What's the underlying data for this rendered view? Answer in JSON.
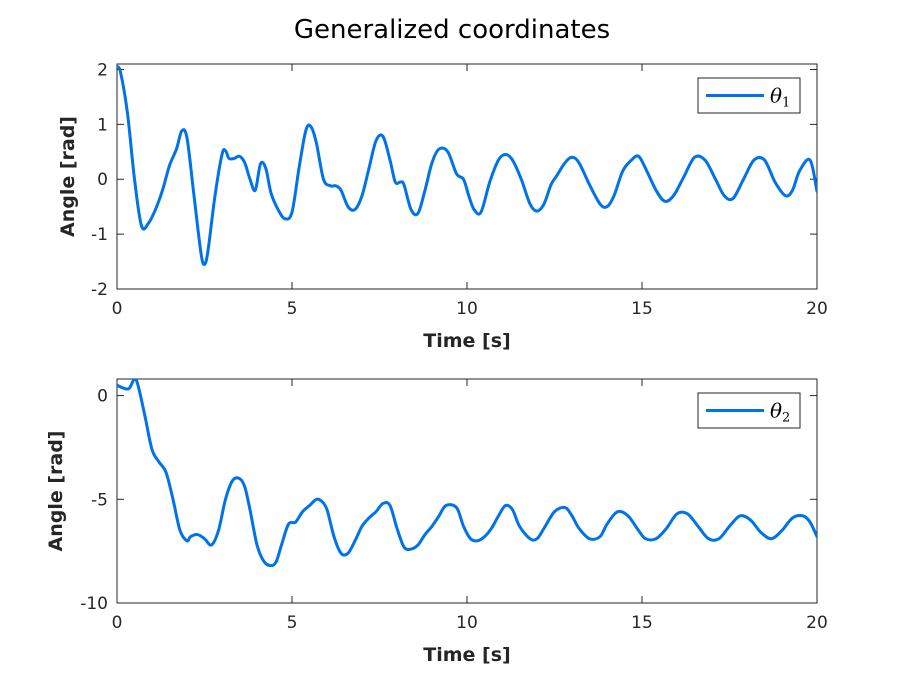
{
  "figure": {
    "title": "Generalized coordinates",
    "line_color": "#0072ea"
  },
  "chart_data": [
    {
      "type": "line",
      "xlabel": "Time [s]",
      "ylabel": "Angle [rad]",
      "xlim": [
        0,
        20
      ],
      "ylim": [
        -2,
        2.1
      ],
      "xticks": [
        "0",
        "5",
        "10",
        "15",
        "20"
      ],
      "yticks": [
        "2",
        "1",
        "0",
        "-1",
        "-2"
      ],
      "xtick_values": [
        0,
        5,
        10,
        15,
        20
      ],
      "ytick_values": [
        2,
        1,
        0,
        -1,
        -2
      ],
      "grid": false,
      "legend_position": "top-right",
      "series": [
        {
          "name": "θ",
          "subscript": "1",
          "x": [
            0,
            0.1,
            0.3,
            0.5,
            0.7,
            0.9,
            1.1,
            1.3,
            1.5,
            1.7,
            1.85,
            2.0,
            2.2,
            2.4,
            2.5,
            2.6,
            2.8,
            3.0,
            3.1,
            3.2,
            3.35,
            3.5,
            3.65,
            3.8,
            3.95,
            4.1,
            4.25,
            4.4,
            4.6,
            4.8,
            5.0,
            5.2,
            5.4,
            5.55,
            5.7,
            5.9,
            6.1,
            6.25,
            6.4,
            6.6,
            6.8,
            7.0,
            7.2,
            7.4,
            7.6,
            7.8,
            7.95,
            8.1,
            8.2,
            8.4,
            8.6,
            8.8,
            9.0,
            9.2,
            9.45,
            9.7,
            9.9,
            10.05,
            10.2,
            10.4,
            10.65,
            10.9,
            11.1,
            11.3,
            11.55,
            11.8,
            12.0,
            12.2,
            12.4,
            12.55,
            12.8,
            13.0,
            13.2,
            13.5,
            13.8,
            14.0,
            14.2,
            14.45,
            14.7,
            14.9,
            15.1,
            15.4,
            15.65,
            15.9,
            16.2,
            16.5,
            16.8,
            17.1,
            17.35,
            17.6,
            17.9,
            18.2,
            18.5,
            18.8,
            19.1,
            19.3,
            19.5,
            19.8,
            20.0
          ],
          "values": [
            2.05,
            1.95,
            1.2,
            0.0,
            -0.85,
            -0.8,
            -0.55,
            -0.2,
            0.25,
            0.55,
            0.88,
            0.75,
            -0.3,
            -1.35,
            -1.55,
            -1.3,
            -0.3,
            0.45,
            0.52,
            0.38,
            0.38,
            0.42,
            0.3,
            0.0,
            -0.2,
            0.28,
            0.2,
            -0.25,
            -0.55,
            -0.72,
            -0.6,
            0.2,
            0.9,
            0.95,
            0.65,
            0.0,
            -0.12,
            -0.12,
            -0.2,
            -0.5,
            -0.55,
            -0.3,
            0.2,
            0.7,
            0.78,
            0.35,
            -0.05,
            -0.05,
            -0.1,
            -0.55,
            -0.62,
            -0.2,
            0.3,
            0.55,
            0.5,
            0.1,
            0.0,
            -0.3,
            -0.55,
            -0.6,
            -0.05,
            0.35,
            0.45,
            0.35,
            0.0,
            -0.45,
            -0.58,
            -0.45,
            -0.1,
            0.05,
            0.3,
            0.4,
            0.3,
            -0.1,
            -0.45,
            -0.5,
            -0.3,
            0.15,
            0.35,
            0.42,
            0.2,
            -0.2,
            -0.4,
            -0.3,
            0.05,
            0.4,
            0.35,
            0.0,
            -0.3,
            -0.35,
            0.0,
            0.35,
            0.35,
            -0.05,
            -0.3,
            -0.2,
            0.15,
            0.35,
            -0.22
          ]
        }
      ]
    },
    {
      "type": "line",
      "xlabel": "Time [s]",
      "ylabel": "Angle [rad]",
      "xlim": [
        0,
        20
      ],
      "ylim": [
        -10,
        0.8
      ],
      "xticks": [
        "0",
        "5",
        "10",
        "15",
        "20"
      ],
      "yticks": [
        "0",
        "-5",
        "-10"
      ],
      "xtick_values": [
        0,
        5,
        10,
        15,
        20
      ],
      "ytick_values": [
        0,
        -5,
        -10
      ],
      "grid": false,
      "legend_position": "top-right",
      "series": [
        {
          "name": "θ",
          "subscript": "2",
          "x": [
            0,
            0.2,
            0.35,
            0.5,
            0.6,
            0.8,
            1.0,
            1.2,
            1.4,
            1.6,
            1.8,
            2.0,
            2.1,
            2.3,
            2.5,
            2.7,
            2.9,
            3.1,
            3.3,
            3.5,
            3.65,
            3.8,
            4.0,
            4.2,
            4.4,
            4.55,
            4.7,
            4.9,
            5.1,
            5.3,
            5.5,
            5.7,
            5.85,
            6.0,
            6.2,
            6.4,
            6.6,
            6.8,
            7.0,
            7.2,
            7.4,
            7.6,
            7.8,
            8.0,
            8.2,
            8.4,
            8.6,
            8.8,
            9.0,
            9.2,
            9.4,
            9.7,
            9.9,
            10.1,
            10.3,
            10.5,
            10.7,
            10.9,
            11.1,
            11.3,
            11.5,
            11.8,
            12.0,
            12.2,
            12.5,
            12.8,
            13.0,
            13.2,
            13.5,
            13.8,
            14.0,
            14.3,
            14.6,
            14.9,
            15.1,
            15.4,
            15.7,
            16.0,
            16.3,
            16.6,
            16.9,
            17.2,
            17.5,
            17.8,
            18.1,
            18.4,
            18.7,
            19.0,
            19.3,
            19.6,
            19.8,
            20.0
          ],
          "values": [
            0.5,
            0.35,
            0.35,
            0.8,
            0.5,
            -1.0,
            -2.6,
            -3.2,
            -3.7,
            -5.0,
            -6.5,
            -7.0,
            -6.8,
            -6.7,
            -6.9,
            -7.2,
            -6.5,
            -5.0,
            -4.1,
            -4.0,
            -4.4,
            -5.5,
            -7.2,
            -8.0,
            -8.2,
            -8.0,
            -7.2,
            -6.2,
            -6.1,
            -5.6,
            -5.3,
            -5.0,
            -5.1,
            -5.5,
            -6.8,
            -7.6,
            -7.6,
            -7.0,
            -6.3,
            -5.9,
            -5.6,
            -5.2,
            -5.3,
            -6.4,
            -7.3,
            -7.4,
            -7.2,
            -6.7,
            -6.3,
            -5.8,
            -5.3,
            -5.4,
            -6.3,
            -6.9,
            -7.0,
            -6.8,
            -6.4,
            -5.8,
            -5.3,
            -5.5,
            -6.3,
            -6.9,
            -6.9,
            -6.4,
            -5.6,
            -5.4,
            -5.8,
            -6.4,
            -6.9,
            -6.8,
            -6.2,
            -5.6,
            -5.8,
            -6.5,
            -6.9,
            -6.9,
            -6.4,
            -5.7,
            -5.7,
            -6.3,
            -6.9,
            -6.9,
            -6.3,
            -5.8,
            -6.0,
            -6.6,
            -6.9,
            -6.5,
            -5.9,
            -5.8,
            -6.1,
            -6.8
          ]
        }
      ]
    }
  ]
}
